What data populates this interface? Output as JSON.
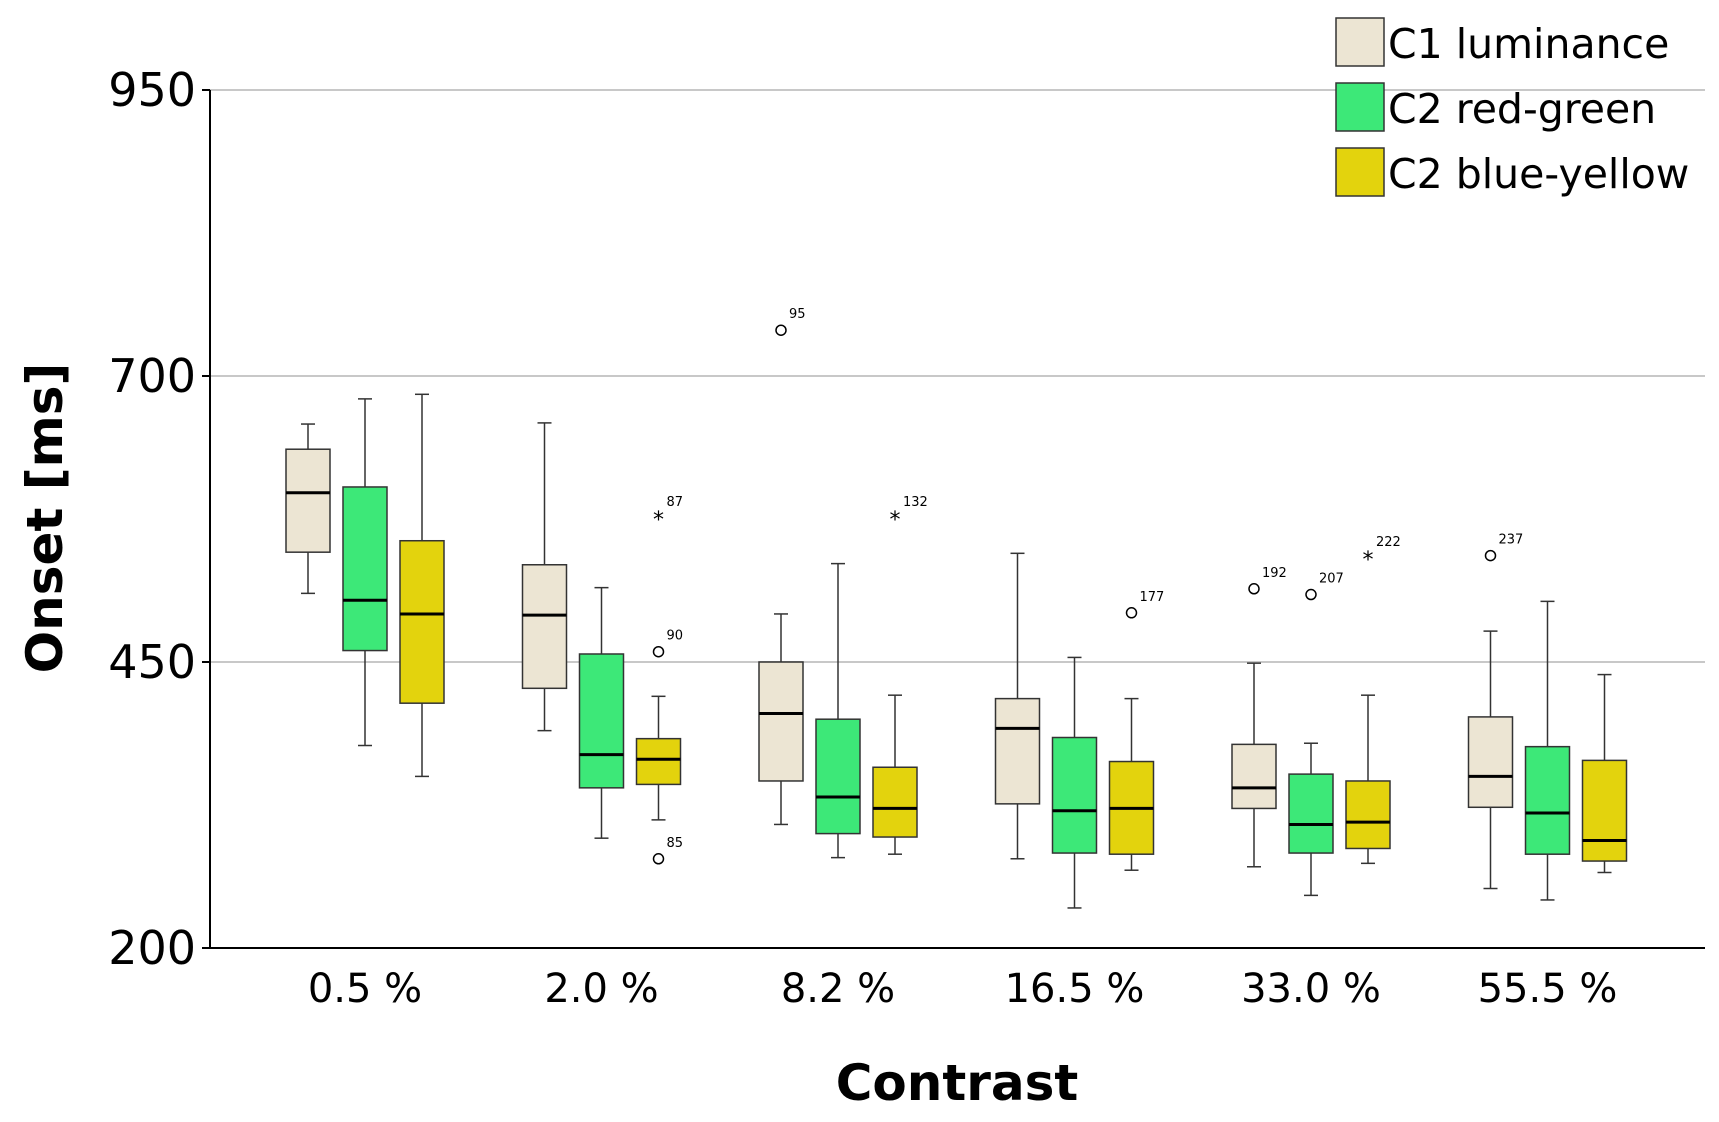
{
  "chart_data": {
    "type": "boxplot",
    "title": "",
    "xlabel": "Contrast",
    "ylabel": "Onset [ms]",
    "ylim": [
      200,
      950
    ],
    "yticks": [
      200,
      450,
      700,
      950
    ],
    "gridlines": [
      450,
      700,
      950
    ],
    "categories": [
      "0.5 %",
      "2.0 %",
      "8.2 %",
      "16.5 %",
      "33.0 %",
      "55.5 %"
    ],
    "legend": {
      "position": "top-right"
    },
    "series": [
      {
        "name": "C1 luminance",
        "color": "#ece5d3",
        "boxes": [
          {
            "min": 510,
            "q1": 546,
            "median": 598,
            "q3": 636,
            "max": 658
          },
          {
            "min": 390,
            "q1": 427,
            "median": 491,
            "q3": 535,
            "max": 659
          },
          {
            "min": 308,
            "q1": 346,
            "median": 405,
            "q3": 450,
            "max": 492
          },
          {
            "min": 278,
            "q1": 326,
            "median": 392,
            "q3": 418,
            "max": 545
          },
          {
            "min": 271,
            "q1": 322,
            "median": 340,
            "q3": 378,
            "max": 449
          },
          {
            "min": 252,
            "q1": 323,
            "median": 350,
            "q3": 402,
            "max": 477
          }
        ]
      },
      {
        "name": "C2 red-green",
        "color": "#3de878",
        "boxes": [
          {
            "min": 377,
            "q1": 460,
            "median": 504,
            "q3": 603,
            "max": 680
          },
          {
            "min": 296,
            "q1": 340,
            "median": 369,
            "q3": 457,
            "max": 515
          },
          {
            "min": 279,
            "q1": 300,
            "median": 332,
            "q3": 400,
            "max": 536
          },
          {
            "min": 235,
            "q1": 283,
            "median": 320,
            "q3": 384,
            "max": 454
          },
          {
            "min": 246,
            "q1": 283,
            "median": 308,
            "q3": 352,
            "max": 379
          },
          {
            "min": 242,
            "q1": 282,
            "median": 318,
            "q3": 376,
            "max": 503
          }
        ]
      },
      {
        "name": "C2 blue-yellow",
        "color": "#e3d30d",
        "boxes": [
          {
            "min": 350,
            "q1": 414,
            "median": 492,
            "q3": 556,
            "max": 684
          },
          {
            "min": 312,
            "q1": 343,
            "median": 365,
            "q3": 383,
            "max": 420
          },
          {
            "min": 282,
            "q1": 297,
            "median": 322,
            "q3": 358,
            "max": 421
          },
          {
            "min": 268,
            "q1": 282,
            "median": 322,
            "q3": 363,
            "max": 418
          },
          {
            "min": 274,
            "q1": 287,
            "median": 310,
            "q3": 346,
            "max": 421
          },
          {
            "min": 266,
            "q1": 276,
            "median": 294,
            "q3": 364,
            "max": 439
          }
        ]
      }
    ],
    "outliers": [
      {
        "category": 1,
        "series": 2,
        "value": 576,
        "marker": "star",
        "label": "87"
      },
      {
        "category": 1,
        "series": 2,
        "value": 459,
        "marker": "circle",
        "label": "90"
      },
      {
        "category": 1,
        "series": 2,
        "value": 278,
        "marker": "circle",
        "label": "85"
      },
      {
        "category": 2,
        "series": 0,
        "value": 740,
        "marker": "circle",
        "label": "95"
      },
      {
        "category": 2,
        "series": 2,
        "value": 576,
        "marker": "star",
        "label": "132"
      },
      {
        "category": 3,
        "series": 2,
        "value": 493,
        "marker": "circle",
        "label": "177"
      },
      {
        "category": 4,
        "series": 0,
        "value": 514,
        "marker": "circle",
        "label": "192"
      },
      {
        "category": 4,
        "series": 1,
        "value": 509,
        "marker": "circle",
        "label": "207"
      },
      {
        "category": 4,
        "series": 2,
        "value": 541,
        "marker": "star",
        "label": "222"
      },
      {
        "category": 5,
        "series": 0,
        "value": 543,
        "marker": "circle",
        "label": "237"
      }
    ]
  }
}
